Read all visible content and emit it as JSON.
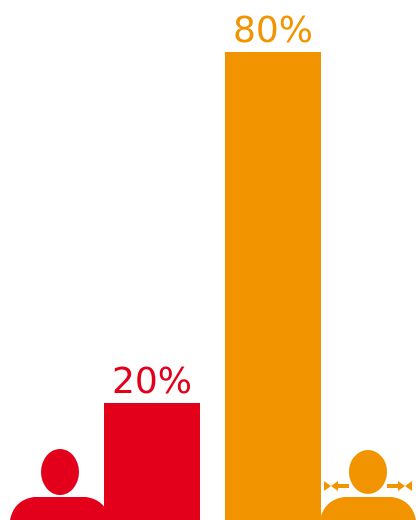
{
  "chart_data": {
    "type": "bar",
    "categories": [
      "male",
      "female"
    ],
    "values": [
      20,
      80
    ],
    "value_labels": [
      "20%",
      "80%"
    ],
    "ylim": [
      0,
      100
    ],
    "grid": false,
    "title": "",
    "xlabel": "",
    "ylabel": ""
  },
  "icons": [
    "male-person-icon",
    "female-person-icon"
  ],
  "colors": {
    "male": "#e2001a",
    "female": "#f29400",
    "background": "#ffffff"
  }
}
